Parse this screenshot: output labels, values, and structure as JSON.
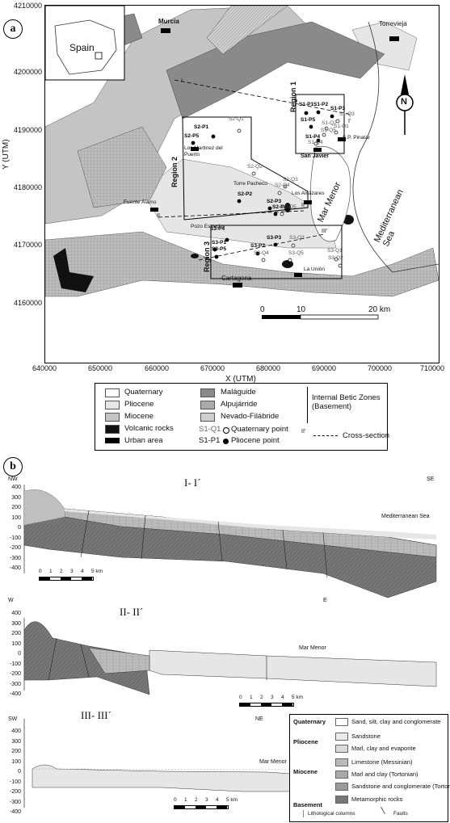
{
  "panel_a": {
    "badge": "a"
  },
  "panel_b": {
    "badge": "b"
  },
  "map": {
    "inset_label": "Spain",
    "y_title": "Y (UTM)",
    "x_title": "X (UTM)",
    "y_ticks": [
      "4210000",
      "4200000",
      "4190000",
      "4180000",
      "4170000",
      "4160000"
    ],
    "x_ticks": [
      "640000",
      "650000",
      "660000",
      "670000",
      "680000",
      "690000",
      "700000",
      "710000"
    ],
    "north": "N",
    "scale": [
      "0",
      "10",
      "20 km"
    ],
    "regions": [
      "Region 1",
      "Region 2",
      "Region 3"
    ],
    "sea_labels": [
      "Mar Menor",
      "Mediterranean Sea"
    ],
    "towns": [
      "Murcia",
      "Torrevieja",
      "Los Martinez del Puerto",
      "Torre Pacheco",
      "Pozo Estrecho",
      "Los Alcázares",
      "San Javier",
      "S.P. Pinatar",
      "Fuente Álamo",
      "Cartagena",
      "La Unión"
    ],
    "section_labels": [
      "I",
      "I'",
      "II",
      "II'",
      "III",
      "III'"
    ],
    "pliocene_points": [
      "S1-P1",
      "S1-P2",
      "S1-P3",
      "S1-P5",
      "S1-P4",
      "S2-P1",
      "S2-P5",
      "S2-P2",
      "S2-P3",
      "S2-P4",
      "S3-P4",
      "S3-P3",
      "S3-P1",
      "S3-P5",
      "S3-P2"
    ],
    "quaternary_points": [
      "S1-Q3",
      "S1-Q2",
      "S1-Q1",
      "S1-Q5",
      "S1-Q4",
      "S2-Q1",
      "S2-Q2",
      "S2-Q3",
      "S2-Q4",
      "S2-Q5",
      "S3-Q3",
      "S3-Q4",
      "S3-Q5",
      "S3-Q1",
      "S3-Q2"
    ]
  },
  "legend": {
    "items": [
      "Quaternary",
      "Pliocene",
      "Miocene",
      "Volcanic rocks",
      "Urban area",
      "Maláguide",
      "Alpujárride",
      "Nevado-Filábride"
    ],
    "basement_title": "Internal Betic Zones (Basement)",
    "points": [
      "S1-Q1",
      "Quaternary point",
      "S1-P1",
      "Pliocene point"
    ],
    "cross_section_sample": "II'",
    "cross_section": "Cross-section"
  },
  "sections": [
    {
      "title": "I- I´",
      "left": "NW",
      "right": "SE",
      "sea": "Mediterranean Sea",
      "y_ticks": [
        "400",
        "300",
        "200",
        "100",
        "0",
        "-100",
        "-200",
        "-300",
        "-400"
      ],
      "scale": [
        "0",
        "1",
        "2",
        "3",
        "4",
        "5 km"
      ]
    },
    {
      "title": "II- II´",
      "left": "W",
      "right": "E",
      "sea": "Mar Menor",
      "y_ticks": [
        "400",
        "300",
        "200",
        "100",
        "0",
        "-100",
        "-200",
        "-300",
        "-400"
      ],
      "scale": [
        "0",
        "1",
        "2",
        "3",
        "4",
        "5 km"
      ]
    },
    {
      "title": "III- III´",
      "left": "SW",
      "right": "NE",
      "sea": "Mar Menor",
      "y_ticks": [
        "400",
        "300",
        "200",
        "100",
        "0",
        "-100",
        "-200",
        "-300",
        "-400"
      ],
      "scale": [
        "0",
        "1",
        "2",
        "3",
        "4",
        "5 km"
      ]
    }
  ],
  "section_legend": {
    "groups": [
      "Quaternary",
      "Pliocene",
      "Miocene",
      "Basement"
    ],
    "entries": [
      "Sand, silt, clay and conglomerate",
      "Sandstone",
      "Marl, clay and evaporite",
      "Limestone (Messinian)",
      "Marl and clay (Tortonian)",
      "Sandstone and conglomerate (Tortonian)",
      "Metamorphic rocks"
    ],
    "footer": [
      "Lithological columns",
      "Faults"
    ]
  },
  "colors": {
    "quaternary": "#ffffff",
    "pliocene": "#e6e6e6",
    "miocene": "#c4c4c4",
    "volcanic": "#111111",
    "malaguide": "#8a8a8a",
    "alpujarride": "#aaaaaa",
    "nevado": "#cfcfcf"
  }
}
